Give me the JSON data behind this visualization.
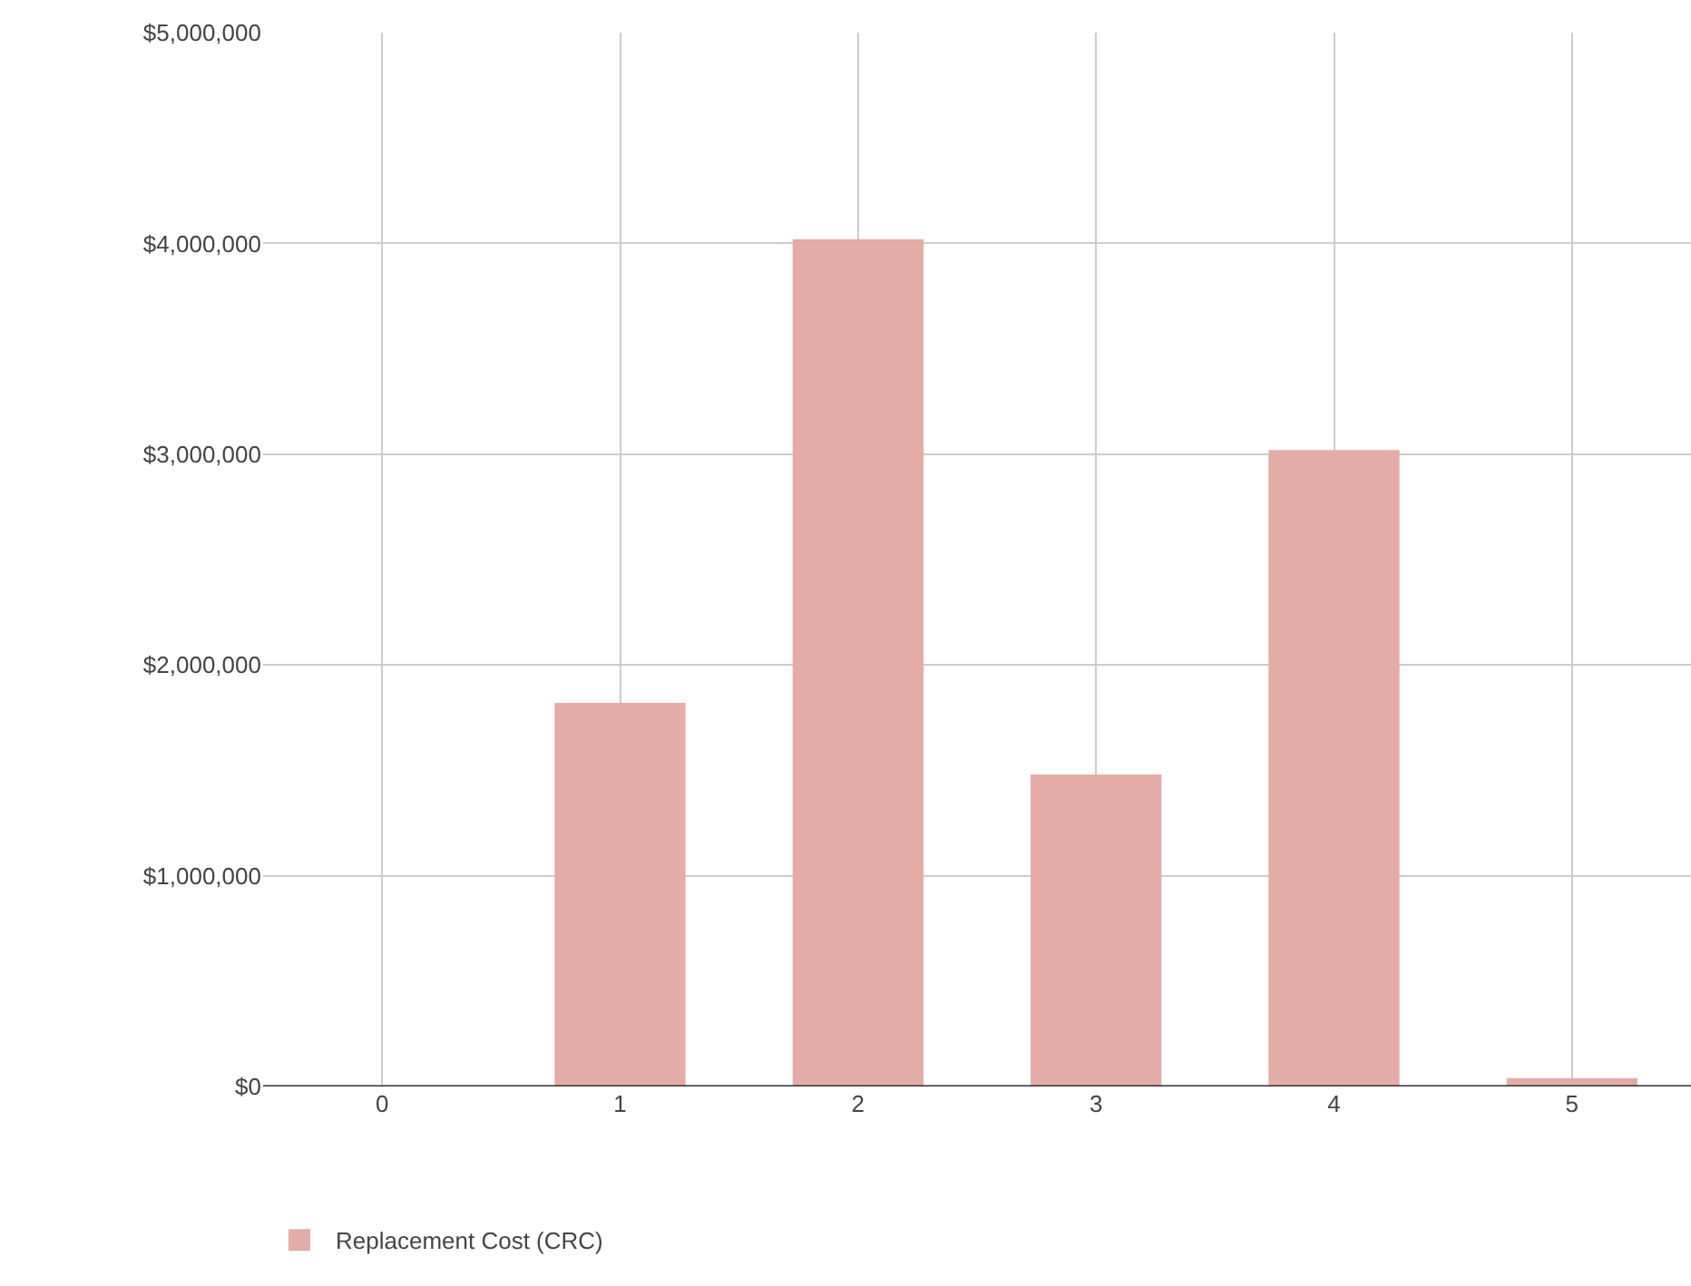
{
  "chart_data": {
    "type": "bar",
    "categories": [
      "0",
      "1",
      "2",
      "3",
      "4",
      "5"
    ],
    "series": [
      {
        "name": "Replacement Cost (CRC)",
        "color": "#e3aca6",
        "values": [
          0,
          1820000,
          4020000,
          1480000,
          3020000,
          40000
        ]
      }
    ],
    "ylim": [
      0,
      5000000
    ],
    "yticks": [
      {
        "value": 0,
        "label": "$0"
      },
      {
        "value": 1000000,
        "label": "$1,000,000"
      },
      {
        "value": 2000000,
        "label": "$2,000,000"
      },
      {
        "value": 3000000,
        "label": "$3,000,000"
      },
      {
        "value": 4000000,
        "label": "$4,000,000"
      },
      {
        "value": 5000000,
        "label": "$5,000,000"
      }
    ],
    "grid": true,
    "legend": "bottom left"
  }
}
